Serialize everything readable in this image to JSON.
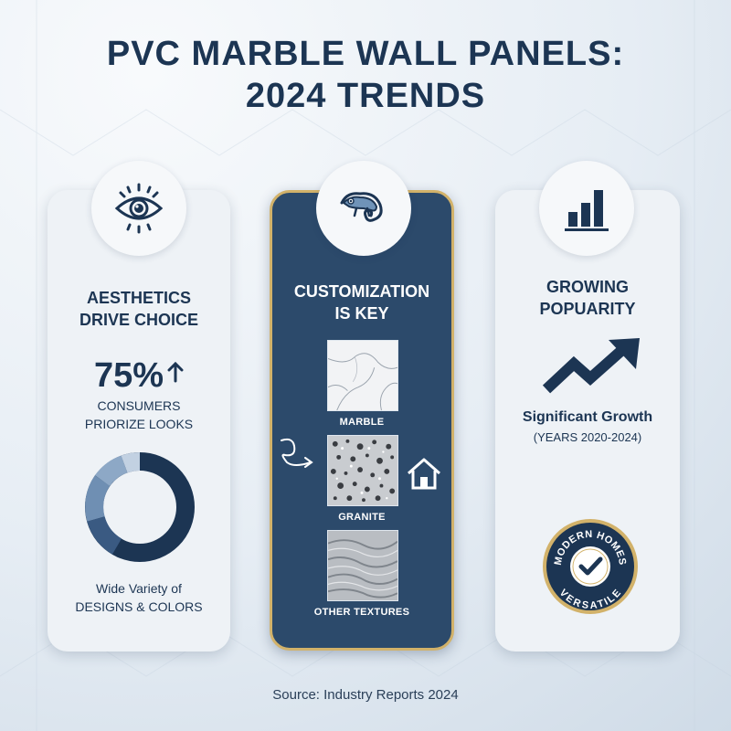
{
  "title": {
    "line1": "PVC MARBLE WALL PANELS:",
    "line2": "2024 TRENDS"
  },
  "colors": {
    "navy": "#1c3553",
    "card_dark": "#2c4a6b",
    "gold_border": "#d2b26a",
    "card_light": "#eef2f6"
  },
  "left_card": {
    "icon": "eye-icon",
    "heading_line1": "AESTHETICS",
    "heading_line2": "DRIVE CHOICE",
    "stat_value": "75%",
    "stat_icon": "arrow-up-icon",
    "stat_label_line1": "CONSUMERS",
    "stat_label_line2": "PRIORIZE LOOKS",
    "donut_icon": "donut-chart-icon",
    "footer_line1": "Wide Variety of",
    "footer_line2": "DESIGNS & COLORS"
  },
  "middle_card": {
    "icon": "chameleon-icon",
    "heading_line1": "CUSTOMIZATION",
    "heading_line2": "IS KEY",
    "textures": [
      {
        "label": "MARBLE"
      },
      {
        "label": "GRANITE"
      },
      {
        "label": "OTHER TEXTURES"
      }
    ],
    "side_icons": [
      "squiggle-arrow-icon",
      "house-icon"
    ]
  },
  "right_card": {
    "icon": "bar-chart-icon",
    "heading_line1": "GROWING",
    "heading_line2": "POPUARITY",
    "trend_icon": "trend-up-arrow-icon",
    "growth_title": "Significant Growth",
    "growth_sub": "(YEARS 2020-2024)",
    "badge": {
      "top_text": "MODERN HOMES",
      "bottom_text": "VERSATILE",
      "icon": "checkmark-icon"
    }
  },
  "source": "Source: Industry Reports 2024"
}
